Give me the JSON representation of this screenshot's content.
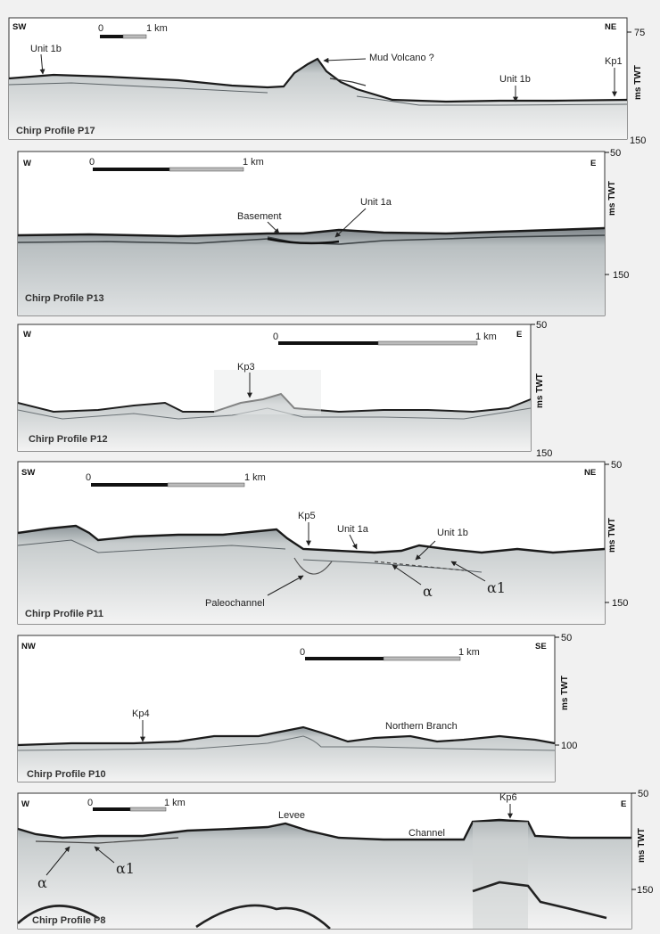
{
  "profiles": [
    {
      "name": "Chirp Profile P17",
      "dir_left": "SW",
      "dir_right": "NE",
      "scale_start": "0",
      "scale_end": "1 km",
      "axis_label": "ms TWT",
      "ticks": [
        "75",
        "150"
      ],
      "annotations": [
        "Unit 1b",
        "Mud Volcano ?",
        "Unit 1b",
        "Kp1"
      ]
    },
    {
      "name": "Chirp Profile P13",
      "dir_left": "W",
      "dir_right": "E",
      "scale_start": "0",
      "scale_end": "1 km",
      "axis_label": "ms TWT",
      "ticks": [
        "50",
        "150"
      ],
      "annotations": [
        "Basement",
        "Unit 1a"
      ]
    },
    {
      "name": "Chirp Profile P12",
      "dir_left": "W",
      "dir_right": "E",
      "scale_start": "0",
      "scale_end": "1 km",
      "axis_label": "ms TWT",
      "ticks": [
        "50",
        "150"
      ],
      "annotations": [
        "Kp3"
      ]
    },
    {
      "name": "Chirp Profile P11",
      "dir_left": "SW",
      "dir_right": "NE",
      "scale_start": "0",
      "scale_end": "1 km",
      "axis_label": "ms TWT",
      "ticks": [
        "50",
        "150"
      ],
      "annotations": [
        "Kp5",
        "Unit 1a",
        "Unit 1b",
        "Paleochannel",
        "α",
        "α1"
      ]
    },
    {
      "name": "Chirp Profile P10",
      "dir_left": "NW",
      "dir_right": "SE",
      "scale_start": "0",
      "scale_end": "1 km",
      "axis_label": "ms TWT",
      "ticks": [
        "50",
        "100"
      ],
      "annotations": [
        "Kp4",
        "Northern Branch"
      ]
    },
    {
      "name": "Chirp Profile P8",
      "dir_left": "W",
      "dir_right": "E",
      "scale_start": "0",
      "scale_end": "1 km",
      "axis_label": "ms TWT",
      "ticks": [
        "50",
        "150"
      ],
      "annotations": [
        "Levee",
        "Channel",
        "Kp6",
        "α",
        "α1"
      ]
    }
  ]
}
